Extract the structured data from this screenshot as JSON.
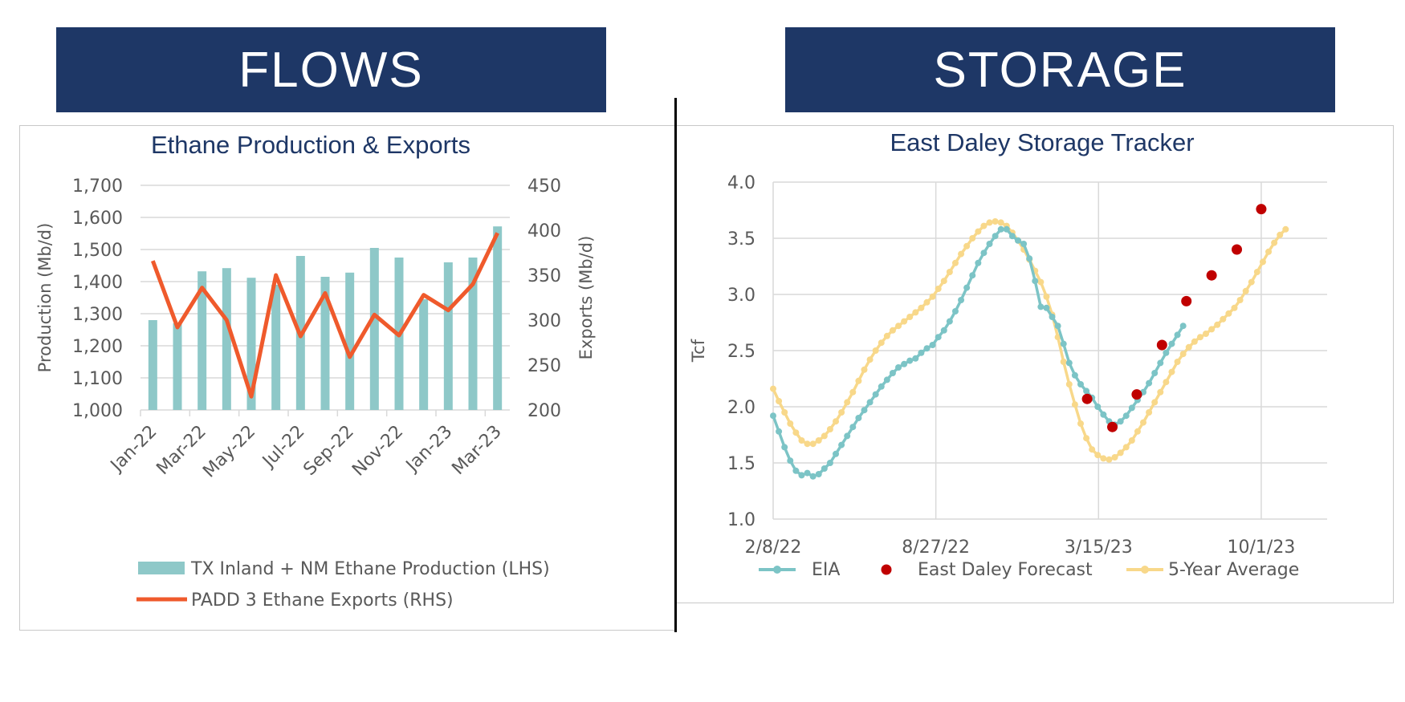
{
  "banners": {
    "left": "FLOWS",
    "right": "STORAGE"
  },
  "chart_data": [
    {
      "type": "bar+line",
      "title": "Ethane Production & Exports",
      "ylabel": "Production (Mb/d)",
      "y2label": "Exports (Mb/d)",
      "ylim": [
        1000,
        1700
      ],
      "y2lim": [
        200,
        450
      ],
      "yticks": [
        "1,000",
        "1,100",
        "1,200",
        "1,300",
        "1,400",
        "1,500",
        "1,600",
        "1,700"
      ],
      "y2ticks": [
        "200",
        "250",
        "300",
        "350",
        "400",
        "450"
      ],
      "x": [
        "Jan-22",
        "Feb-22",
        "Mar-22",
        "Apr-22",
        "May-22",
        "Jun-22",
        "Jul-22",
        "Aug-22",
        "Sep-22",
        "Oct-22",
        "Nov-22",
        "Dec-22",
        "Jan-23",
        "Feb-23",
        "Mar-23"
      ],
      "xtick_labels": [
        "Jan-22",
        "Mar-22",
        "May-22",
        "Jul-22",
        "Sep-22",
        "Nov-22",
        "Jan-23",
        "Mar-23"
      ],
      "series": [
        {
          "name": "TX Inland + NM Ethane Production (LHS)",
          "type": "bar",
          "axis": "left",
          "color": "#8ec8c8",
          "values": [
            1280,
            1270,
            1432,
            1442,
            1412,
            1390,
            1480,
            1415,
            1428,
            1505,
            1475,
            1345,
            1460,
            1475,
            1572
          ]
        },
        {
          "name": "PADD 3 Ethane Exports (RHS)",
          "type": "line",
          "axis": "right",
          "color": "#ef5a2c",
          "values": [
            366,
            292,
            336,
            300,
            215,
            350,
            282,
            330,
            259,
            306,
            283,
            328,
            311,
            340,
            397
          ]
        }
      ],
      "grid": true,
      "legend_position": "bottom"
    },
    {
      "type": "line",
      "title": "East Daley Storage Tracker",
      "ylabel": "Tcf",
      "ylim": [
        1.0,
        4.0
      ],
      "yticks": [
        "1.0",
        "1.5",
        "2.0",
        "2.5",
        "3.0",
        "3.5",
        "4.0"
      ],
      "xlim": [
        "2/8/22",
        "12/21/23"
      ],
      "xticks": [
        "2/8/22",
        "8/27/22",
        "3/15/23",
        "10/1/23"
      ],
      "series": [
        {
          "name": "EIA",
          "type": "line-marker",
          "color": "#7cc4c6",
          "points": [
            [
              "2022-02-08",
              1.92
            ],
            [
              "2022-02-15",
              1.78
            ],
            [
              "2022-02-22",
              1.64
            ],
            [
              "2022-03-01",
              1.52
            ],
            [
              "2022-03-08",
              1.43
            ],
            [
              "2022-03-15",
              1.39
            ],
            [
              "2022-03-22",
              1.41
            ],
            [
              "2022-03-29",
              1.38
            ],
            [
              "2022-04-05",
              1.4
            ],
            [
              "2022-04-12",
              1.45
            ],
            [
              "2022-04-19",
              1.5
            ],
            [
              "2022-04-26",
              1.58
            ],
            [
              "2022-05-03",
              1.66
            ],
            [
              "2022-05-10",
              1.74
            ],
            [
              "2022-05-17",
              1.82
            ],
            [
              "2022-05-24",
              1.9
            ],
            [
              "2022-05-31",
              1.97
            ],
            [
              "2022-06-07",
              2.04
            ],
            [
              "2022-06-14",
              2.11
            ],
            [
              "2022-06-21",
              2.18
            ],
            [
              "2022-06-28",
              2.24
            ],
            [
              "2022-07-05",
              2.3
            ],
            [
              "2022-07-12",
              2.35
            ],
            [
              "2022-07-19",
              2.38
            ],
            [
              "2022-07-26",
              2.41
            ],
            [
              "2022-08-02",
              2.43
            ],
            [
              "2022-08-09",
              2.48
            ],
            [
              "2022-08-16",
              2.52
            ],
            [
              "2022-08-23",
              2.55
            ],
            [
              "2022-08-30",
              2.62
            ],
            [
              "2022-09-06",
              2.68
            ],
            [
              "2022-09-13",
              2.76
            ],
            [
              "2022-09-20",
              2.85
            ],
            [
              "2022-09-27",
              2.95
            ],
            [
              "2022-10-04",
              3.06
            ],
            [
              "2022-10-11",
              3.17
            ],
            [
              "2022-10-18",
              3.28
            ],
            [
              "2022-10-25",
              3.37
            ],
            [
              "2022-11-01",
              3.45
            ],
            [
              "2022-11-08",
              3.52
            ],
            [
              "2022-11-15",
              3.58
            ],
            [
              "2022-11-22",
              3.58
            ],
            [
              "2022-11-29",
              3.52
            ],
            [
              "2022-12-06",
              3.48
            ],
            [
              "2022-12-13",
              3.45
            ],
            [
              "2022-12-20",
              3.32
            ],
            [
              "2022-12-27",
              3.12
            ],
            [
              "2023-01-03",
              2.89
            ],
            [
              "2023-01-10",
              2.88
            ],
            [
              "2023-01-17",
              2.8
            ],
            [
              "2023-01-24",
              2.72
            ],
            [
              "2023-01-31",
              2.56
            ],
            [
              "2023-02-07",
              2.39
            ],
            [
              "2023-02-14",
              2.28
            ],
            [
              "2023-02-21",
              2.2
            ],
            [
              "2023-02-28",
              2.14
            ],
            [
              "2023-03-07",
              2.08
            ],
            [
              "2023-03-14",
              2.0
            ],
            [
              "2023-03-21",
              1.93
            ],
            [
              "2023-03-28",
              1.87
            ],
            [
              "2023-04-04",
              1.84
            ],
            [
              "2023-04-11",
              1.87
            ],
            [
              "2023-04-18",
              1.92
            ],
            [
              "2023-04-25",
              1.99
            ],
            [
              "2023-05-02",
              2.06
            ],
            [
              "2023-05-09",
              2.13
            ],
            [
              "2023-05-16",
              2.21
            ],
            [
              "2023-05-23",
              2.3
            ],
            [
              "2023-05-30",
              2.39
            ],
            [
              "2023-06-06",
              2.48
            ],
            [
              "2023-06-13",
              2.56
            ],
            [
              "2023-06-20",
              2.64
            ],
            [
              "2023-06-27",
              2.72
            ]
          ]
        },
        {
          "name": "East Daley Forecast",
          "type": "scatter",
          "color": "#c00000",
          "points": [
            [
              "2023-03-01",
              2.07
            ],
            [
              "2023-04-01",
              1.82
            ],
            [
              "2023-05-01",
              2.11
            ],
            [
              "2023-06-01",
              2.55
            ],
            [
              "2023-07-01",
              2.94
            ],
            [
              "2023-08-01",
              3.17
            ],
            [
              "2023-09-01",
              3.4
            ],
            [
              "2023-10-01",
              3.76
            ]
          ]
        },
        {
          "name": "5-Year Average",
          "type": "line-marker",
          "color": "#f8d88a",
          "points": [
            [
              "2022-02-08",
              2.16
            ],
            [
              "2022-02-15",
              2.05
            ],
            [
              "2022-02-22",
              1.95
            ],
            [
              "2022-03-01",
              1.85
            ],
            [
              "2022-03-08",
              1.77
            ],
            [
              "2022-03-15",
              1.7
            ],
            [
              "2022-03-22",
              1.67
            ],
            [
              "2022-03-29",
              1.67
            ],
            [
              "2022-04-05",
              1.7
            ],
            [
              "2022-04-12",
              1.74
            ],
            [
              "2022-04-19",
              1.8
            ],
            [
              "2022-04-26",
              1.87
            ],
            [
              "2022-05-03",
              1.95
            ],
            [
              "2022-05-10",
              2.04
            ],
            [
              "2022-05-17",
              2.13
            ],
            [
              "2022-05-24",
              2.23
            ],
            [
              "2022-05-31",
              2.33
            ],
            [
              "2022-06-07",
              2.42
            ],
            [
              "2022-06-14",
              2.5
            ],
            [
              "2022-06-21",
              2.57
            ],
            [
              "2022-06-28",
              2.63
            ],
            [
              "2022-07-05",
              2.68
            ],
            [
              "2022-07-12",
              2.72
            ],
            [
              "2022-07-19",
              2.76
            ],
            [
              "2022-07-26",
              2.8
            ],
            [
              "2022-08-02",
              2.84
            ],
            [
              "2022-08-09",
              2.88
            ],
            [
              "2022-08-16",
              2.93
            ],
            [
              "2022-08-23",
              2.98
            ],
            [
              "2022-08-30",
              3.05
            ],
            [
              "2022-09-06",
              3.12
            ],
            [
              "2022-09-13",
              3.2
            ],
            [
              "2022-09-20",
              3.28
            ],
            [
              "2022-09-27",
              3.36
            ],
            [
              "2022-10-04",
              3.43
            ],
            [
              "2022-10-11",
              3.5
            ],
            [
              "2022-10-18",
              3.56
            ],
            [
              "2022-10-25",
              3.61
            ],
            [
              "2022-11-01",
              3.64
            ],
            [
              "2022-11-08",
              3.65
            ],
            [
              "2022-11-15",
              3.64
            ],
            [
              "2022-11-22",
              3.61
            ],
            [
              "2022-11-29",
              3.55
            ],
            [
              "2022-12-06",
              3.48
            ],
            [
              "2022-12-13",
              3.4
            ],
            [
              "2022-12-20",
              3.31
            ],
            [
              "2022-12-27",
              3.21
            ],
            [
              "2023-01-03",
              3.11
            ],
            [
              "2023-01-10",
              2.98
            ],
            [
              "2023-01-17",
              2.82
            ],
            [
              "2023-01-24",
              2.62
            ],
            [
              "2023-01-31",
              2.4
            ],
            [
              "2023-02-07",
              2.2
            ],
            [
              "2023-02-14",
              2.02
            ],
            [
              "2023-02-21",
              1.85
            ],
            [
              "2023-02-28",
              1.72
            ],
            [
              "2023-03-07",
              1.62
            ],
            [
              "2023-03-14",
              1.57
            ],
            [
              "2023-03-21",
              1.54
            ],
            [
              "2023-03-28",
              1.53
            ],
            [
              "2023-04-04",
              1.55
            ],
            [
              "2023-04-11",
              1.59
            ],
            [
              "2023-04-18",
              1.64
            ],
            [
              "2023-04-25",
              1.7
            ],
            [
              "2023-05-02",
              1.78
            ],
            [
              "2023-05-09",
              1.86
            ],
            [
              "2023-05-16",
              1.95
            ],
            [
              "2023-05-23",
              2.04
            ],
            [
              "2023-05-30",
              2.13
            ],
            [
              "2023-06-06",
              2.22
            ],
            [
              "2023-06-13",
              2.31
            ],
            [
              "2023-06-20",
              2.4
            ],
            [
              "2023-06-27",
              2.47
            ],
            [
              "2023-07-04",
              2.53
            ],
            [
              "2023-07-11",
              2.58
            ],
            [
              "2023-07-18",
              2.62
            ],
            [
              "2023-07-25",
              2.65
            ],
            [
              "2023-08-01",
              2.69
            ],
            [
              "2023-08-08",
              2.73
            ],
            [
              "2023-08-15",
              2.78
            ],
            [
              "2023-08-22",
              2.83
            ],
            [
              "2023-08-29",
              2.88
            ],
            [
              "2023-09-05",
              2.95
            ],
            [
              "2023-09-12",
              3.03
            ],
            [
              "2023-09-19",
              3.11
            ],
            [
              "2023-09-26",
              3.2
            ],
            [
              "2023-10-03",
              3.29
            ],
            [
              "2023-10-10",
              3.38
            ],
            [
              "2023-10-17",
              3.46
            ],
            [
              "2023-10-24",
              3.53
            ],
            [
              "2023-10-31",
              3.58
            ]
          ]
        }
      ],
      "grid": true,
      "legend_position": "bottom"
    }
  ]
}
